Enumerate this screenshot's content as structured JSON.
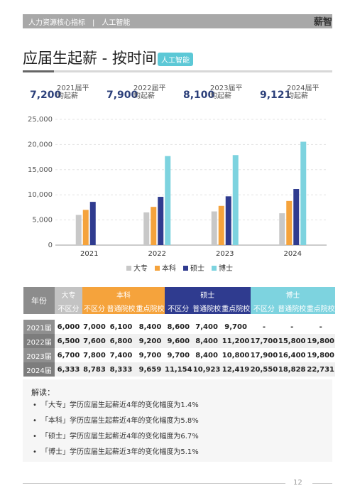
{
  "header": {
    "breadcrumb": "人力资源核心指标　|　人工智能",
    "brand": "薪智"
  },
  "title": "应届生起薪 - 按时间",
  "tag": "人工智能",
  "kpis": [
    {
      "value": "7,200",
      "label": "2021届平均起薪"
    },
    {
      "value": "7,900",
      "label": "2022届平均起薪"
    },
    {
      "value": "8,100",
      "label": "2023届平均起薪"
    },
    {
      "value": "9,121",
      "label": "2024届平均起薪"
    }
  ],
  "chart_data": {
    "type": "bar",
    "categories": [
      "2021",
      "2022",
      "2023",
      "2024"
    ],
    "series": [
      {
        "name": "大专",
        "values": [
          6000,
          6500,
          6700,
          6333
        ],
        "color": "#c8c8c8"
      },
      {
        "name": "本科",
        "values": [
          7000,
          7600,
          7800,
          8783
        ],
        "color": "#f5a33c"
      },
      {
        "name": "硕士",
        "values": [
          8600,
          9600,
          9700,
          11154
        ],
        "color": "#2f3b8f"
      },
      {
        "name": "博士",
        "values": [
          null,
          17700,
          17900,
          20550
        ],
        "color": "#7dd3df"
      }
    ],
    "ylim": [
      0,
      25000
    ],
    "yticks": [
      "0",
      "5,000",
      "10,000",
      "15,000",
      "20,000",
      "25,000"
    ],
    "grid": true,
    "legend": "bottom"
  },
  "table": {
    "year_header": "年份",
    "groups": [
      {
        "name": "大专",
        "subs": [
          "不区分"
        ]
      },
      {
        "name": "本科",
        "subs": [
          "不区分",
          "普通院校",
          "重点院校"
        ]
      },
      {
        "name": "硕士",
        "subs": [
          "不区分",
          "普通院校",
          "重点院校"
        ]
      },
      {
        "name": "博士",
        "subs": [
          "不区分",
          "普通院校",
          "重点院校"
        ]
      }
    ],
    "rows": [
      {
        "year": "2021届",
        "cells": [
          "6,000",
          "7,000",
          "6,100",
          "8,400",
          "8,600",
          "7,400",
          "9,700",
          "-",
          "-",
          "-"
        ]
      },
      {
        "year": "2022届",
        "cells": [
          "6,500",
          "7,600",
          "6,800",
          "9,200",
          "9,600",
          "8,400",
          "11,200",
          "17,700",
          "15,800",
          "19,800"
        ]
      },
      {
        "year": "2023届",
        "cells": [
          "6,700",
          "7,800",
          "7,400",
          "9,700",
          "9,700",
          "8,400",
          "10,800",
          "17,900",
          "16,400",
          "19,800"
        ]
      },
      {
        "year": "2024届",
        "cells": [
          "6,333",
          "8,783",
          "8,333",
          "9,659",
          "11,154",
          "10,923",
          "12,419",
          "20,550",
          "18,828",
          "22,731"
        ]
      }
    ]
  },
  "notes": {
    "heading": "解读：",
    "items": [
      "「大专」学历应届生起薪近4年的变化幅度为1.4%",
      "「本科」学历应届生起薪近4年的变化幅度为5.8%",
      "「硕士」学历应届生起薪近4年的变化幅度为6.7%",
      "「博士」学历应届生起薪近3年的变化幅度为5.1%"
    ]
  },
  "page_number": "12"
}
